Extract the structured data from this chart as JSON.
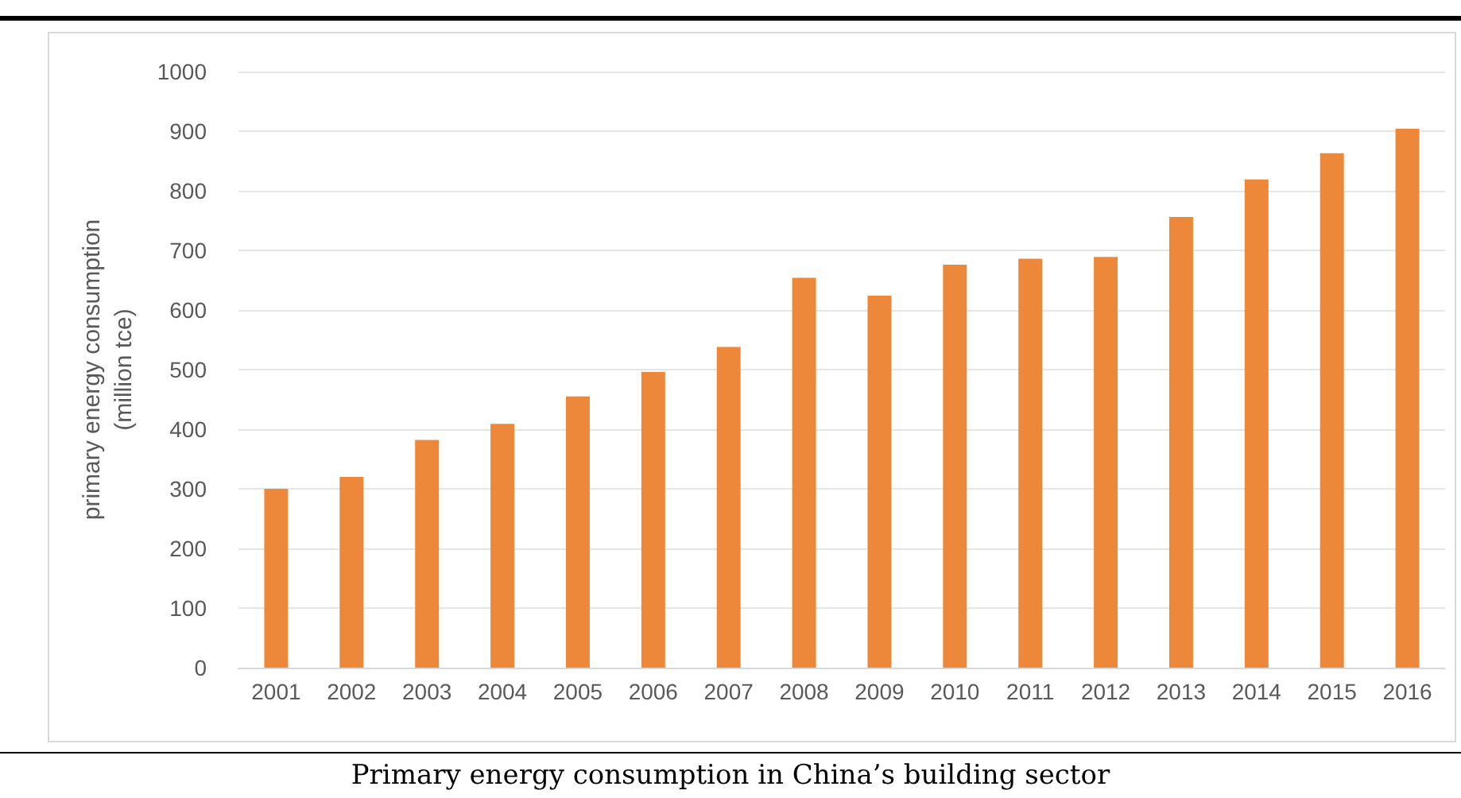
{
  "chart_data": {
    "type": "bar",
    "title": "Primary energy consumption in China’s building sector",
    "ylabel": "primary energy consumption\n(million tce)",
    "categories": [
      "2001",
      "2002",
      "2003",
      "2004",
      "2005",
      "2006",
      "2007",
      "2008",
      "2009",
      "2010",
      "2011",
      "2012",
      "2013",
      "2014",
      "2015",
      "2016"
    ],
    "values": [
      300,
      320,
      382,
      409,
      455,
      496,
      538,
      654,
      624,
      676,
      686,
      689,
      756,
      819,
      863,
      904
    ],
    "color": "#ed883a",
    "ylim": [
      0,
      1000
    ],
    "yticks": [
      0,
      100,
      200,
      300,
      400,
      500,
      600,
      700,
      800,
      900,
      1000
    ],
    "grid": "y"
  }
}
